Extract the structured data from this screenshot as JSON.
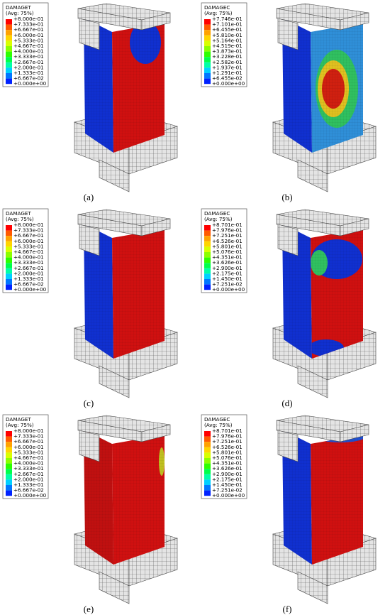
{
  "panels": [
    {
      "legend_title": "DAMAGET",
      "legend_subtitle": "(Avg: 75%)",
      "legend_labels": [
        "+8.000e-01",
        "+7.333e-01",
        "+6.667e-01",
        "+6.000e-01",
        "+5.333e-01",
        "+4.667e-01",
        "+4.000e-01",
        "+3.333e-01",
        "+2.667e-01",
        "+2.000e-01",
        "+1.333e-01",
        "+6.667e-02",
        "+0.000e+00"
      ],
      "caption": "(a)"
    },
    {
      "legend_title": "DAMAGEC",
      "legend_subtitle": "(Avg: 75%)",
      "legend_labels": [
        "+7.746e-01",
        "+7.101e-01",
        "+6.455e-01",
        "+5.810e-01",
        "+5.164e-01",
        "+4.519e-01",
        "+3.873e-01",
        "+3.228e-01",
        "+2.582e-01",
        "+1.937e-01",
        "+1.291e-01",
        "+6.455e-02",
        "+0.000e+00"
      ],
      "caption": "(b)"
    },
    {
      "legend_title": "DAMAGET",
      "legend_subtitle": "(Avg: 75%)",
      "legend_labels": [
        "+8.000e-01",
        "+7.333e-01",
        "+6.667e-01",
        "+6.000e-01",
        "+5.333e-01",
        "+4.667e-01",
        "+4.000e-01",
        "+3.333e-01",
        "+2.667e-01",
        "+2.000e-01",
        "+1.333e-01",
        "+6.667e-02",
        "+0.000e+00"
      ],
      "caption": "(c)"
    },
    {
      "legend_title": "DAMAGEC",
      "legend_subtitle": "(Avg: 75%)",
      "legend_labels": [
        "+8.701e-01",
        "+7.976e-01",
        "+7.251e-01",
        "+6.526e-01",
        "+5.801e-01",
        "+5.076e-01",
        "+4.351e-01",
        "+3.626e-01",
        "+2.900e-01",
        "+2.175e-01",
        "+1.450e-01",
        "+7.251e-02",
        "+0.000e+00"
      ],
      "caption": "(d)"
    },
    {
      "legend_title": "DAMAGET",
      "legend_subtitle": "(Avg: 75%)",
      "legend_labels": [
        "+8.000e-01",
        "+7.333e-01",
        "+6.667e-01",
        "+6.000e-01",
        "+5.333e-01",
        "+4.667e-01",
        "+4.000e-01",
        "+3.333e-01",
        "+2.667e-01",
        "+2.000e-01",
        "+1.333e-01",
        "+6.667e-02",
        "+0.000e+00"
      ],
      "caption": "(e)"
    },
    {
      "legend_title": "DAMAGEC",
      "legend_subtitle": "(Avg: 75%)",
      "legend_labels": [
        "+8.701e-01",
        "+7.976e-01",
        "+7.251e-01",
        "+6.526e-01",
        "+5.801e-01",
        "+5.076e-01",
        "+4.351e-01",
        "+3.626e-01",
        "+2.900e-01",
        "+2.175e-01",
        "+1.450e-01",
        "+7.251e-02",
        "+0.000e+00"
      ],
      "caption": "(f)"
    }
  ]
}
